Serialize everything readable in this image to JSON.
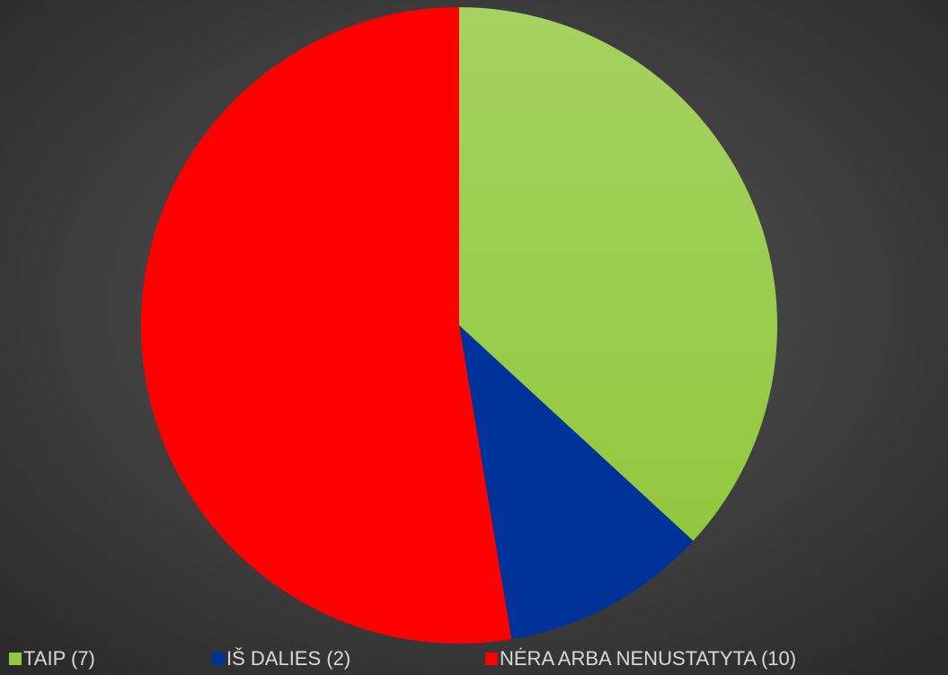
{
  "chart_data": {
    "type": "pie",
    "categories": [
      "TAIP (7)",
      "IŠ DALIES (2)",
      "NĖRA ARBA NENUSTATYTA (10)"
    ],
    "values": [
      7,
      2,
      10
    ],
    "colors": [
      "#92c83e",
      "#003399",
      "#ff0000"
    ],
    "legend": "bottom"
  }
}
